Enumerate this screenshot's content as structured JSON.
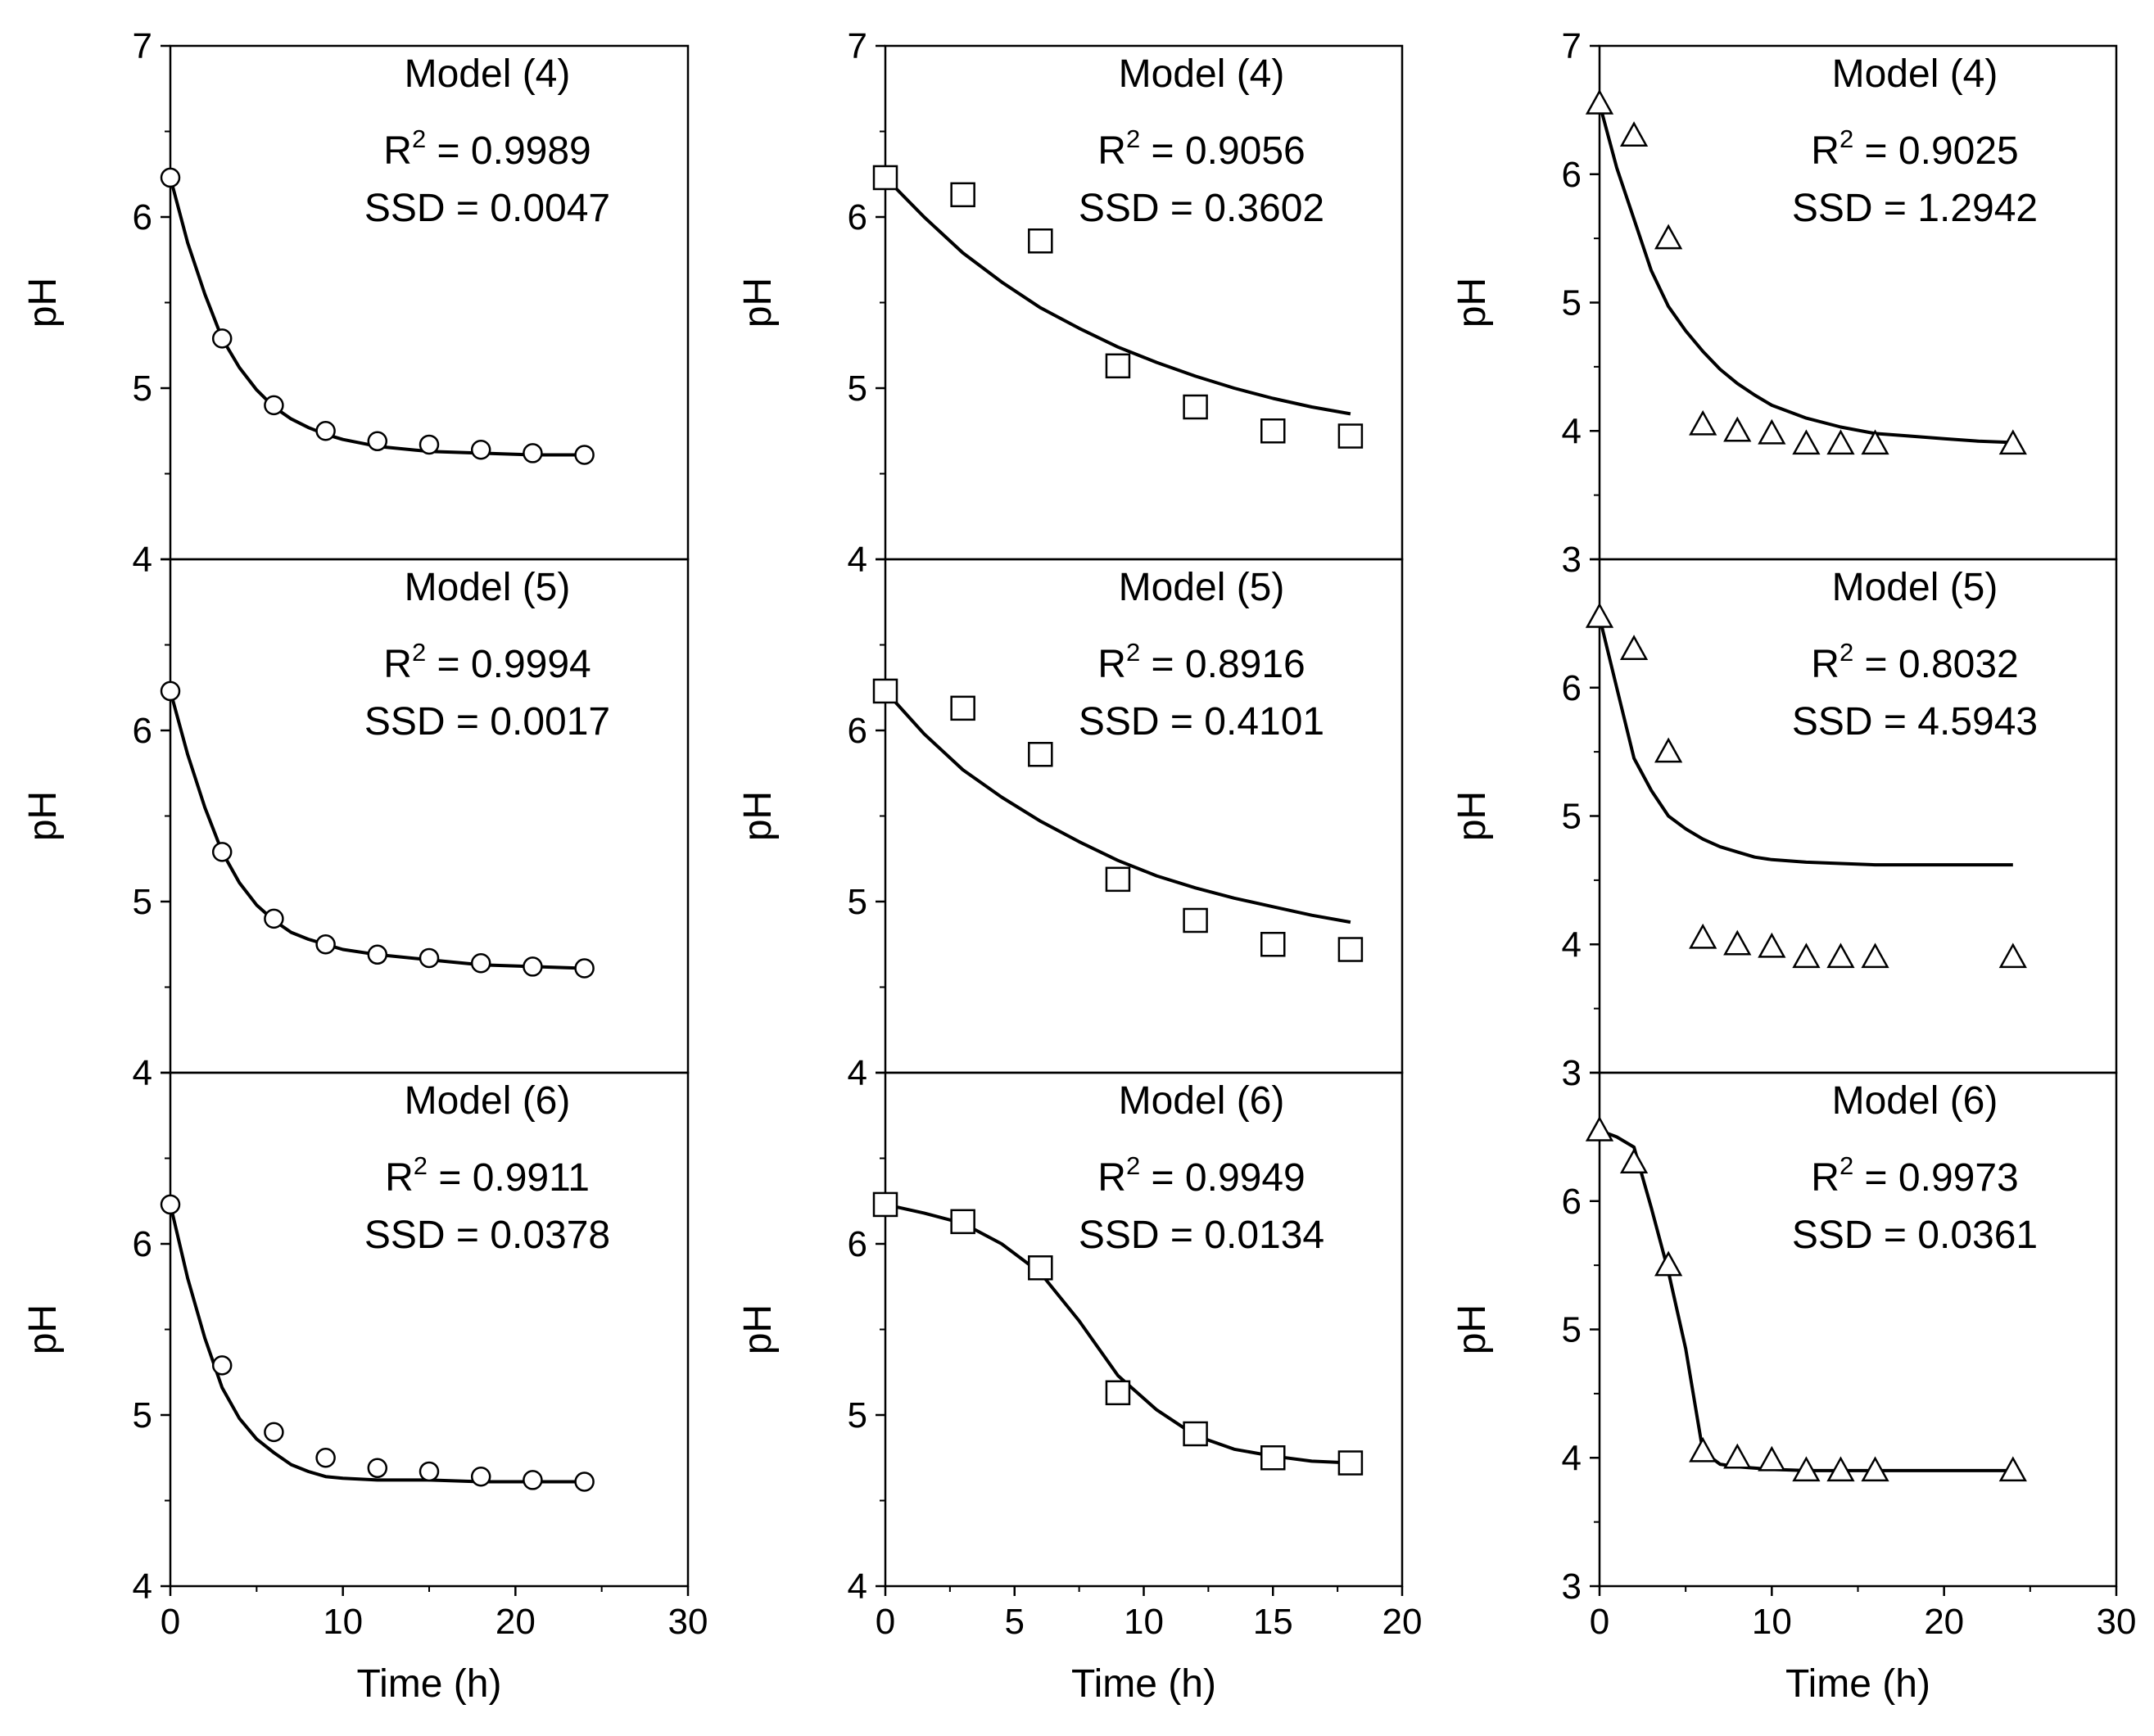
{
  "chart_data": {
    "type": "scatter",
    "layout": "3 columns x 3 stacked panels",
    "ylabel": "pH",
    "xlabel": "Time (h)",
    "columns": [
      {
        "marker": "circle",
        "xlim": [
          0,
          30
        ],
        "xticks": [
          "0",
          "10",
          "20",
          "30"
        ],
        "ylim": [
          4,
          7
        ],
        "x": [
          0,
          3,
          6,
          9,
          12,
          15,
          18,
          21,
          24
        ],
        "observed": [
          6.23,
          5.29,
          4.9,
          4.75,
          4.69,
          4.67,
          4.64,
          4.62,
          4.61
        ],
        "panels": [
          {
            "model": "Model (4)",
            "r2_label": "R",
            "r2_sup": "2",
            "r2_value": " = 0.9989",
            "ssd": "SSD = 0.0047",
            "yticks": [
              "7",
              "6",
              "5",
              "4"
            ],
            "fit_x": [
              0,
              1,
              2,
              3,
              4,
              5,
              6,
              7,
              8,
              9,
              10,
              12,
              15,
              18,
              21,
              24
            ],
            "fit_y": [
              6.23,
              5.85,
              5.55,
              5.29,
              5.12,
              4.99,
              4.89,
              4.82,
              4.77,
              4.73,
              4.7,
              4.66,
              4.63,
              4.62,
              4.61,
              4.61
            ]
          },
          {
            "model": "Model (5)",
            "r2_label": "R",
            "r2_sup": "2",
            "r2_value": " = 0.9994",
            "ssd": "SSD = 0.0017",
            "yticks": [
              "6",
              "5",
              "4"
            ],
            "fit_x": [
              0,
              1,
              2,
              3,
              4,
              5,
              6,
              7,
              8,
              9,
              10,
              12,
              15,
              18,
              21,
              24
            ],
            "fit_y": [
              6.23,
              5.86,
              5.55,
              5.29,
              5.11,
              4.98,
              4.89,
              4.82,
              4.78,
              4.75,
              4.72,
              4.69,
              4.66,
              4.63,
              4.62,
              4.61
            ]
          },
          {
            "model": "Model (6)",
            "r2_label": "R",
            "r2_sup": "2",
            "r2_value": " = 0.9911",
            "ssd": "SSD = 0.0378",
            "yticks": [
              "6",
              "5",
              "4"
            ],
            "fit_x": [
              0,
              1,
              2,
              3,
              4,
              5,
              6,
              7,
              8,
              9,
              10,
              12,
              15,
              18,
              21,
              24
            ],
            "fit_y": [
              6.23,
              5.8,
              5.45,
              5.16,
              4.98,
              4.86,
              4.78,
              4.71,
              4.67,
              4.64,
              4.63,
              4.62,
              4.62,
              4.61,
              4.61,
              4.61
            ]
          }
        ]
      },
      {
        "marker": "square",
        "xlim": [
          0,
          20
        ],
        "xticks": [
          "0",
          "5",
          "10",
          "15",
          "20"
        ],
        "ylim": [
          4,
          7
        ],
        "x": [
          0,
          3,
          6,
          9,
          12,
          15,
          18
        ],
        "observed": [
          6.23,
          6.13,
          5.86,
          5.13,
          4.89,
          4.75,
          4.72
        ],
        "panels": [
          {
            "model": "Model (4)",
            "r2_label": "R",
            "r2_sup": "2",
            "r2_value": " = 0.9056",
            "ssd": "SSD = 0.3602",
            "yticks": [
              "7",
              "6",
              "5",
              "4"
            ],
            "fit_x": [
              0,
              1.5,
              3,
              4.5,
              6,
              7.5,
              9,
              10.5,
              12,
              13.5,
              15,
              16.5,
              18
            ],
            "fit_y": [
              6.23,
              6.0,
              5.79,
              5.62,
              5.47,
              5.35,
              5.24,
              5.15,
              5.07,
              5.0,
              4.94,
              4.89,
              4.85
            ]
          },
          {
            "model": "Model (5)",
            "r2_label": "R",
            "r2_sup": "2",
            "r2_value": " = 0.8916",
            "ssd": "SSD = 0.4101",
            "yticks": [
              "6",
              "5",
              "4"
            ],
            "fit_x": [
              0,
              1.5,
              3,
              4.5,
              6,
              7.5,
              9,
              10.5,
              12,
              13.5,
              15,
              16.5,
              18
            ],
            "fit_y": [
              6.23,
              5.98,
              5.77,
              5.61,
              5.47,
              5.35,
              5.24,
              5.15,
              5.08,
              5.02,
              4.97,
              4.92,
              4.88
            ]
          },
          {
            "model": "Model (6)",
            "r2_label": "R",
            "r2_sup": "2",
            "r2_value": " = 0.9949",
            "ssd": "SSD = 0.0134",
            "yticks": [
              "6",
              "5",
              "4"
            ],
            "fit_x": [
              0,
              1.5,
              3,
              4.5,
              6,
              7.5,
              9,
              10.5,
              12,
              13.5,
              15,
              16.5,
              18
            ],
            "fit_y": [
              6.23,
              6.18,
              6.12,
              6.0,
              5.83,
              5.55,
              5.23,
              5.03,
              4.88,
              4.8,
              4.76,
              4.73,
              4.72
            ]
          }
        ]
      },
      {
        "marker": "triangle",
        "xlim": [
          0,
          30
        ],
        "xticks": [
          "0",
          "10",
          "20",
          "30"
        ],
        "ylim": [
          3,
          7
        ],
        "x": [
          0,
          2,
          4,
          6,
          8,
          10,
          12,
          14,
          16,
          24
        ],
        "observed": [
          6.55,
          6.3,
          5.5,
          4.05,
          4.0,
          3.98,
          3.9,
          3.9,
          3.9,
          3.9
        ],
        "panels": [
          {
            "model": "Model (4)",
            "r2_label": "R",
            "r2_sup": "2",
            "r2_value": " = 0.9025",
            "ssd": "SSD = 1.2942",
            "yticks": [
              "7",
              "6",
              "5",
              "4",
              "3"
            ],
            "fit_x": [
              0,
              1,
              2,
              3,
              4,
              5,
              6,
              7,
              8,
              9,
              10,
              12,
              14,
              16,
              18,
              20,
              22,
              24
            ],
            "fit_y": [
              6.55,
              6.05,
              5.65,
              5.25,
              4.97,
              4.78,
              4.62,
              4.48,
              4.37,
              4.28,
              4.2,
              4.1,
              4.03,
              3.98,
              3.96,
              3.94,
              3.92,
              3.91
            ]
          },
          {
            "model": "Model (5)",
            "r2_label": "R",
            "r2_sup": "2",
            "r2_value": " = 0.8032",
            "ssd": "SSD = 4.5943",
            "yticks": [
              "6",
              "5",
              "4",
              "3"
            ],
            "fit_x": [
              0,
              1,
              2,
              3,
              4,
              5,
              6,
              7,
              8,
              9,
              10,
              12,
              14,
              16,
              18,
              20,
              22,
              24
            ],
            "fit_y": [
              6.55,
              6.0,
              5.45,
              5.2,
              5.0,
              4.9,
              4.82,
              4.76,
              4.72,
              4.68,
              4.66,
              4.64,
              4.63,
              4.62,
              4.62,
              4.62,
              4.62,
              4.62
            ]
          },
          {
            "model": "Model (6)",
            "r2_label": "R",
            "r2_sup": "2",
            "r2_value": " = 0.9973",
            "ssd": "SSD = 0.0361",
            "yticks": [
              "6",
              "5",
              "4",
              "3"
            ],
            "fit_x": [
              0,
              1,
              2,
              3,
              4,
              5,
              6,
              7,
              8,
              10,
              12,
              14,
              16,
              20,
              24
            ],
            "fit_y": [
              6.55,
              6.5,
              6.42,
              5.95,
              5.45,
              4.85,
              4.05,
              3.95,
              3.93,
              3.91,
              3.9,
              3.9,
              3.9,
              3.9,
              3.9
            ]
          }
        ]
      }
    ]
  }
}
